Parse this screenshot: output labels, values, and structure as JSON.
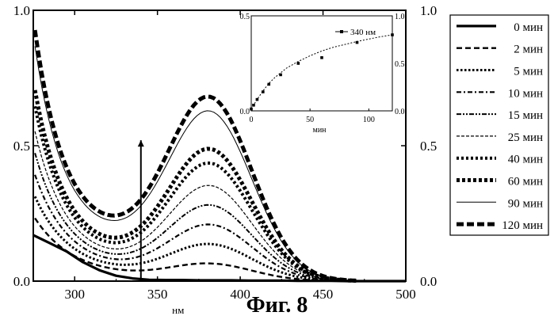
{
  "figure": {
    "caption": "Фиг. 8"
  },
  "chart_data": [
    {
      "type": "line",
      "title": "",
      "xlabel": "нм",
      "ylabel": "",
      "xlim": [
        275,
        500
      ],
      "ylim": [
        0,
        1
      ],
      "x_ticks": [
        300,
        350,
        400,
        450,
        500
      ],
      "x_tick_labels": [
        "300",
        "350",
        "400",
        "450",
        "500"
      ],
      "y_ticks": [
        0,
        0.5,
        1
      ],
      "y_tick_labels": [
        "0.0",
        "0.5",
        "1.0"
      ],
      "right_y_tick_labels": [
        "0.0",
        "0.5",
        "1.0"
      ],
      "marker_wavelength": 340,
      "marker_y_range": [
        0,
        0.52
      ],
      "legend_position": "right",
      "series": [
        {
          "name": "0 мин",
          "style": "solid-thick",
          "peak": 0.0,
          "valley": 0.0,
          "x": [
            275,
            285,
            295,
            305,
            315,
            325,
            335,
            345,
            355,
            365,
            375,
            385,
            395,
            405,
            415,
            425,
            435,
            445,
            455,
            465,
            475,
            500
          ],
          "values": [
            0.17,
            0.14,
            0.11,
            0.07,
            0.04,
            0.02,
            0.01,
            0.005,
            0.004,
            0.004,
            0.003,
            0.003,
            0.003,
            0.002,
            0.002,
            0.002,
            0.001,
            0.001,
            0.001,
            0,
            0,
            0
          ]
        },
        {
          "name": "2 мин",
          "style": "dash",
          "peak": 0.06,
          "valley": 0.012
        },
        {
          "name": "5 мин",
          "style": "dot-bold",
          "peak": 0.13,
          "valley": 0.025
        },
        {
          "name": "10 мин",
          "style": "dash-dot",
          "peak": 0.2,
          "valley": 0.04
        },
        {
          "name": "15 мин",
          "style": "dash-dot-dot",
          "peak": 0.27,
          "valley": 0.055
        },
        {
          "name": "25 мин",
          "style": "short-dash",
          "peak": 0.34,
          "valley": 0.07
        },
        {
          "name": "40 мин",
          "style": "dot-thick",
          "peak": 0.42,
          "valley": 0.09
        },
        {
          "name": "60 мин",
          "style": "dot-xthick",
          "peak": 0.47,
          "valley": 0.11
        },
        {
          "name": "90 мин",
          "style": "solid-thin",
          "peak": 0.6,
          "valley": 0.19
        },
        {
          "name": "120 мин",
          "style": "dash-xthick",
          "peak": 0.65,
          "valley": 0.21
        }
      ]
    },
    {
      "type": "scatter",
      "title": "",
      "xlabel": "мин",
      "ylabel": "",
      "xlim": [
        0,
        120
      ],
      "ylim": [
        0,
        0.5
      ],
      "x_ticks": [
        0,
        50,
        100
      ],
      "x_tick_labels": [
        "0",
        "50",
        "100"
      ],
      "y_ticks": [
        0,
        0.5
      ],
      "y_tick_labels": [
        "0.0",
        "0.5"
      ],
      "right_y_ticks": [
        0,
        0.5,
        1
      ],
      "right_y_tick_labels": [
        "0.0",
        "0.5",
        "1.0"
      ],
      "legend_position": "top-right",
      "series": [
        {
          "name": "340 нм",
          "x": [
            0,
            2,
            5,
            10,
            15,
            25,
            40,
            60,
            90,
            120
          ],
          "values": [
            0.01,
            0.03,
            0.06,
            0.1,
            0.14,
            0.19,
            0.25,
            0.28,
            0.36,
            0.4
          ],
          "fit_x": [
            0,
            5,
            10,
            15,
            20,
            25,
            30,
            40,
            50,
            60,
            70,
            80,
            90,
            100,
            110,
            120
          ],
          "fit_values": [
            0.01,
            0.06,
            0.105,
            0.145,
            0.175,
            0.2,
            0.225,
            0.26,
            0.29,
            0.315,
            0.335,
            0.35,
            0.365,
            0.378,
            0.39,
            0.4
          ]
        }
      ]
    }
  ]
}
